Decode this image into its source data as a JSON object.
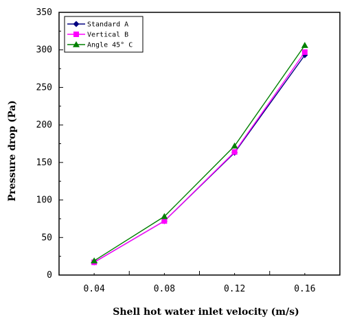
{
  "chart_data": {
    "type": "line",
    "xlabel": "Shell hot water inlet velocity (m/s)",
    "ylabel": "Pressure drop (Pa)",
    "x": [
      0.04,
      0.08,
      0.12,
      0.16
    ],
    "x_tick_labels": [
      "0.04",
      "0.08",
      "0.12",
      "0.16"
    ],
    "xlim": [
      0.02,
      0.18
    ],
    "ylim": [
      0,
      350
    ],
    "y_ticks": [
      0,
      50,
      100,
      150,
      200,
      250,
      300,
      350
    ],
    "grid": false,
    "legend_position": "top-left",
    "series": [
      {
        "name": "Standard A",
        "values": [
          17,
          72,
          163,
          293
        ],
        "color": "#000080",
        "marker": "diamond"
      },
      {
        "name": "Vertical B",
        "values": [
          17,
          72,
          164,
          297
        ],
        "color": "#ff00ff",
        "marker": "square"
      },
      {
        "name": "Angle 45° C",
        "values": [
          19,
          78,
          172,
          306
        ],
        "color": "#008000",
        "marker": "triangle"
      }
    ]
  }
}
